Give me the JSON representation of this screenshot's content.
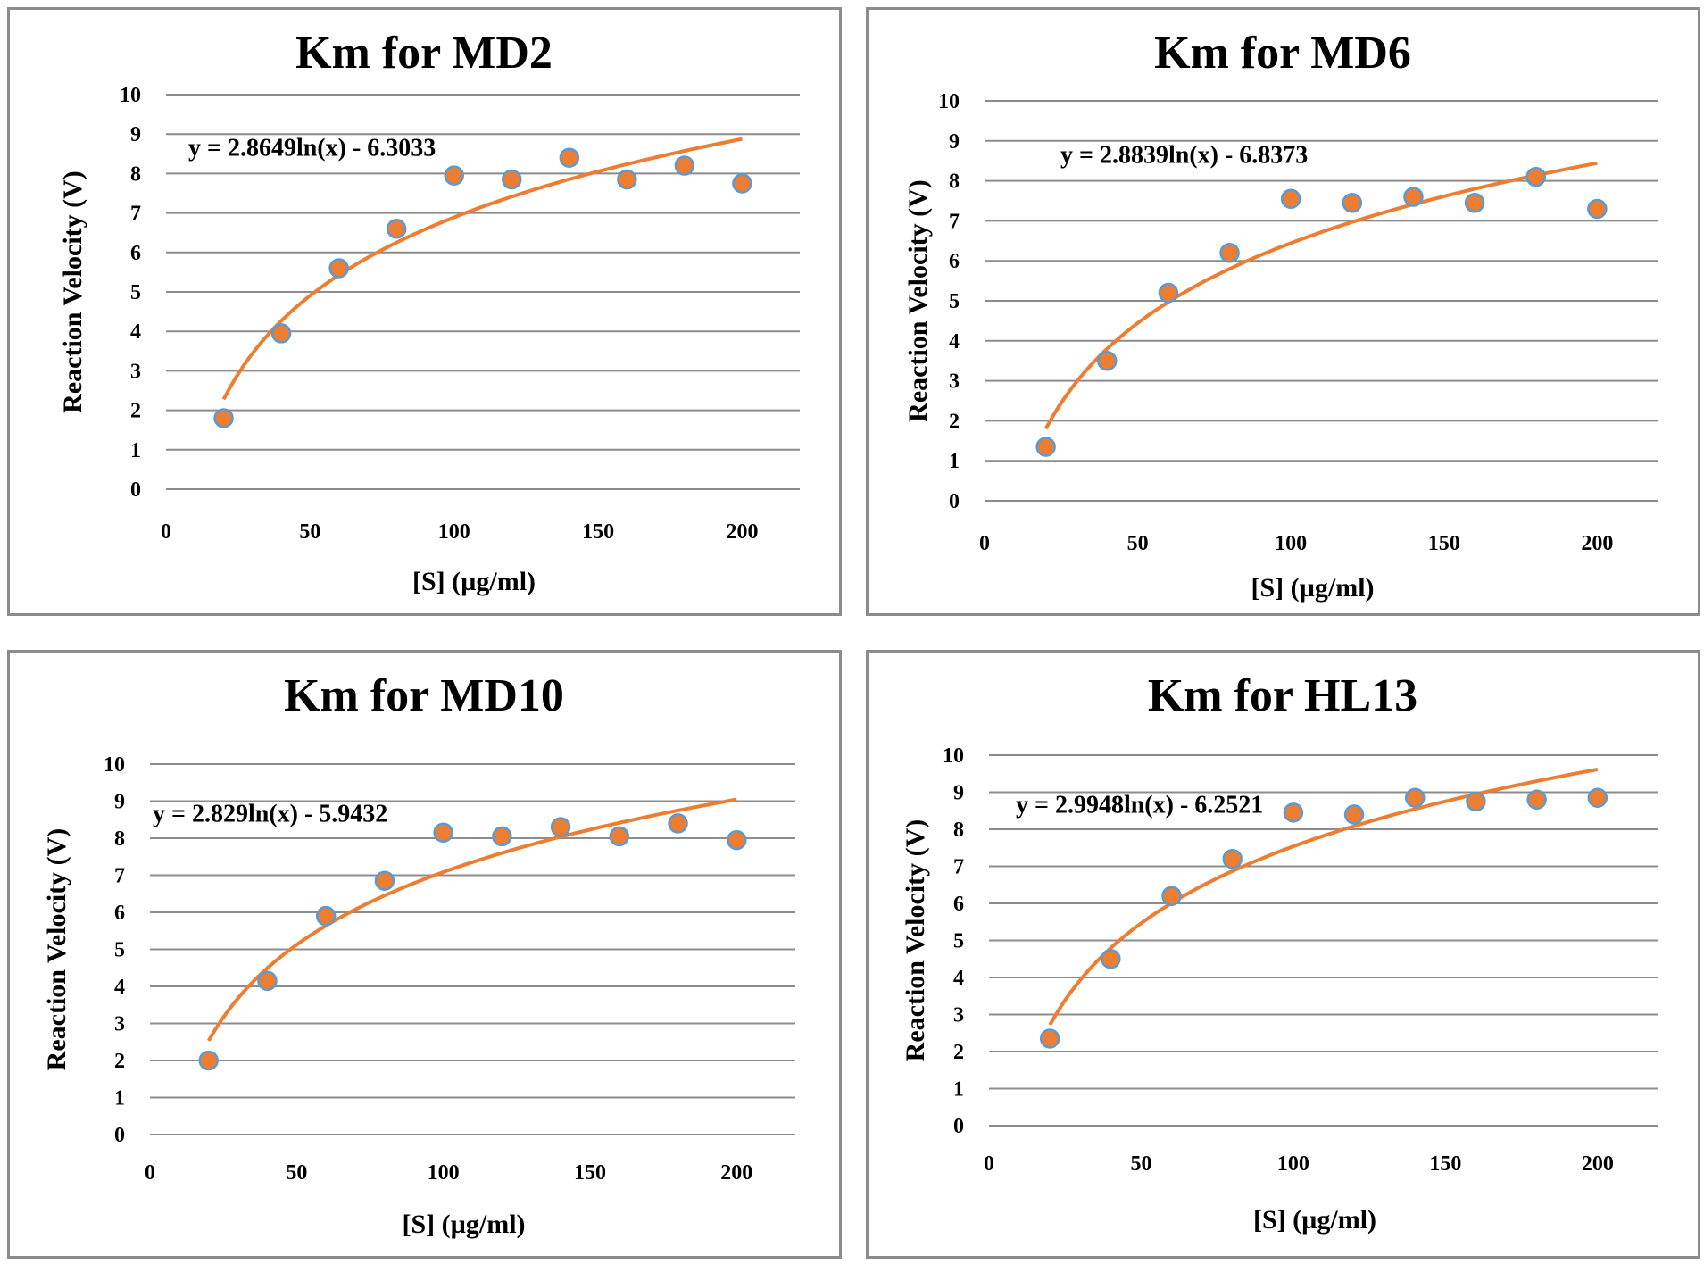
{
  "colors": {
    "point_fill": "#ED7D31",
    "point_stroke": "#5B9BD5",
    "trendline": "#ED7D31",
    "grid": "#8c8c8c"
  },
  "chart_data": [
    {
      "type": "scatter",
      "title": "Km for MD2",
      "xlabel": "[S] (µg/ml)",
      "ylabel": "Reaction Velocity (V)",
      "xlim": [
        0,
        220
      ],
      "ylim": [
        0,
        10
      ],
      "xticks": [
        "0",
        "50",
        "100",
        "150",
        "200"
      ],
      "yticks": [
        "0",
        "1",
        "2",
        "3",
        "4",
        "5",
        "6",
        "7",
        "8",
        "9",
        "10"
      ],
      "grid": "horizontal",
      "x": [
        20,
        40,
        60,
        80,
        100,
        120,
        140,
        160,
        180,
        200
      ],
      "y": [
        1.8,
        3.95,
        5.6,
        6.6,
        7.95,
        7.85,
        8.4,
        7.85,
        8.2,
        7.75
      ],
      "trendline": {
        "type": "log",
        "a": 2.8649,
        "b": -6.3033,
        "from": 20,
        "to": 200,
        "equation": "y = 2.8649ln(x) - 6.3033"
      }
    },
    {
      "type": "scatter",
      "title": "Km for MD6",
      "xlabel": "[S] (µg/ml)",
      "ylabel": "Reaction Velocity (V)",
      "xlim": [
        0,
        220
      ],
      "ylim": [
        0,
        10
      ],
      "xticks": [
        "0",
        "50",
        "100",
        "150",
        "200"
      ],
      "yticks": [
        "0",
        "1",
        "2",
        "3",
        "4",
        "5",
        "6",
        "7",
        "8",
        "9",
        "10"
      ],
      "grid": "horizontal",
      "x": [
        20,
        40,
        60,
        80,
        100,
        120,
        140,
        160,
        180,
        200
      ],
      "y": [
        1.35,
        3.5,
        5.2,
        6.2,
        7.55,
        7.45,
        7.6,
        7.45,
        8.1,
        7.3
      ],
      "trendline": {
        "type": "log",
        "a": 2.8839,
        "b": -6.8373,
        "from": 20,
        "to": 200,
        "equation": "y = 2.8839ln(x) - 6.8373"
      }
    },
    {
      "type": "scatter",
      "title": "Km for MD10",
      "xlabel": "[S] (µg/ml)",
      "ylabel": "Reaction Velocity (V)",
      "xlim": [
        0,
        220
      ],
      "ylim": [
        0,
        10
      ],
      "xticks": [
        "0",
        "50",
        "100",
        "150",
        "200"
      ],
      "yticks": [
        "0",
        "1",
        "2",
        "3",
        "4",
        "5",
        "6",
        "7",
        "8",
        "9",
        "10"
      ],
      "grid": "horizontal",
      "x": [
        20,
        40,
        60,
        80,
        100,
        120,
        140,
        160,
        180,
        200
      ],
      "y": [
        2.0,
        4.15,
        5.9,
        6.85,
        8.15,
        8.05,
        8.3,
        8.05,
        8.4,
        7.95
      ],
      "trendline": {
        "type": "log",
        "a": 2.829,
        "b": -5.9432,
        "from": 20,
        "to": 200,
        "equation": "y = 2.829ln(x) - 5.9432"
      }
    },
    {
      "type": "scatter",
      "title": "Km for HL13",
      "xlabel": "[S] (µg/ml)",
      "ylabel": "Reaction Velocity (V)",
      "xlim": [
        0,
        220
      ],
      "ylim": [
        0,
        10
      ],
      "xticks": [
        "0",
        "50",
        "100",
        "150",
        "200"
      ],
      "yticks": [
        "0",
        "1",
        "2",
        "3",
        "4",
        "5",
        "6",
        "7",
        "8",
        "9",
        "10"
      ],
      "grid": "horizontal",
      "x": [
        20,
        40,
        60,
        80,
        100,
        120,
        140,
        160,
        180,
        200
      ],
      "y": [
        2.35,
        4.5,
        6.2,
        7.2,
        8.45,
        8.4,
        8.85,
        8.75,
        8.8,
        8.85
      ],
      "trendline": {
        "type": "log",
        "a": 2.9948,
        "b": -6.2521,
        "from": 20,
        "to": 200,
        "equation": "y = 2.9948ln(x) - 6.2521"
      }
    }
  ]
}
